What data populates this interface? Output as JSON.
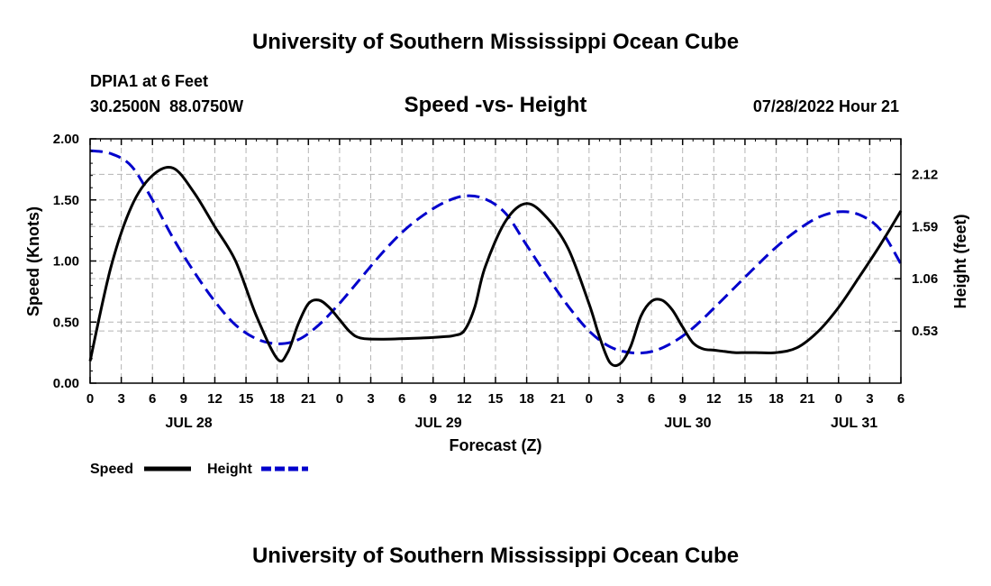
{
  "header": {
    "title": "University of Southern Mississippi Ocean Cube",
    "station": "DPIA1 at 6 Feet",
    "coords": "30.2500N  88.0750W",
    "subtitle": "Speed -vs- Height",
    "datetime": "07/28/2022 Hour 21"
  },
  "footer": {
    "title": "University of Southern Mississippi Ocean Cube"
  },
  "chart_data": {
    "type": "line",
    "title": "Speed -vs- Height",
    "xlabel": "Forecast (Z)",
    "ylabel_left": "Speed (Knots)",
    "ylabel_right": "Height (feet)",
    "x_hours_range": [
      0,
      78
    ],
    "ylim_left": [
      0,
      2.0
    ],
    "ylim_right": [
      0,
      2.48
    ],
    "y_ticks_left": [
      "0.00",
      "0.50",
      "1.00",
      "1.50",
      "2.00"
    ],
    "y_tick_values_left": [
      0,
      0.5,
      1.0,
      1.5,
      2.0
    ],
    "y_ticks_right": [
      "0.53",
      "1.06",
      "1.59",
      "2.12"
    ],
    "y_tick_values_right": [
      0.53,
      1.06,
      1.59,
      2.12
    ],
    "x_ticks": [
      "0",
      "3",
      "6",
      "9",
      "12",
      "15",
      "18",
      "21",
      "0",
      "3",
      "6",
      "9",
      "12",
      "15",
      "18",
      "21",
      "0",
      "3",
      "6",
      "9",
      "12",
      "15",
      "18",
      "21",
      "0",
      "3",
      "6"
    ],
    "x_tick_hours": [
      0,
      3,
      6,
      9,
      12,
      15,
      18,
      21,
      24,
      27,
      30,
      33,
      36,
      39,
      42,
      45,
      48,
      51,
      54,
      57,
      60,
      63,
      66,
      69,
      72,
      75,
      78
    ],
    "date_labels": [
      "JUL 28",
      "JUL 29",
      "JUL 30",
      "JUL 31"
    ],
    "date_label_hours": [
      9.5,
      33.5,
      57.5,
      73.5
    ],
    "grid": true,
    "legend_position": "bottom-left",
    "series": [
      {
        "name": "Speed",
        "axis": "left",
        "color": "#000000",
        "style": "solid",
        "x": [
          0,
          2,
          4,
          6,
          8,
          10,
          12,
          14,
          16,
          18,
          19,
          20,
          21,
          22,
          23,
          24,
          25,
          26,
          28,
          32,
          34,
          35,
          36,
          37,
          38,
          40,
          42,
          44,
          46,
          48,
          49,
          50,
          51,
          52,
          53,
          54,
          55,
          56,
          57,
          58,
          59,
          60,
          61,
          62,
          63,
          64,
          66,
          68,
          70,
          72,
          74,
          76,
          78
        ],
        "values": [
          0.18,
          0.95,
          1.45,
          1.7,
          1.76,
          1.56,
          1.28,
          1.0,
          0.55,
          0.2,
          0.25,
          0.48,
          0.65,
          0.68,
          0.62,
          0.52,
          0.42,
          0.37,
          0.36,
          0.37,
          0.38,
          0.39,
          0.43,
          0.62,
          0.95,
          1.33,
          1.47,
          1.35,
          1.1,
          0.65,
          0.38,
          0.17,
          0.16,
          0.3,
          0.55,
          0.67,
          0.68,
          0.6,
          0.46,
          0.33,
          0.28,
          0.27,
          0.26,
          0.25,
          0.25,
          0.25,
          0.25,
          0.29,
          0.42,
          0.62,
          0.87,
          1.13,
          1.41
        ]
      },
      {
        "name": "Height",
        "axis": "right",
        "color": "#0000cc",
        "style": "dashed",
        "x": [
          0,
          2,
          4,
          6,
          8,
          10,
          12,
          14,
          16,
          18,
          20,
          22,
          24,
          26,
          28,
          30,
          32,
          34,
          36,
          38,
          40,
          42,
          44,
          46,
          48,
          50,
          52,
          54,
          56,
          58,
          60,
          62,
          64,
          66,
          68,
          70,
          72,
          74,
          76,
          78
        ],
        "values": [
          2.36,
          2.33,
          2.2,
          1.86,
          1.47,
          1.13,
          0.83,
          0.59,
          0.45,
          0.4,
          0.44,
          0.59,
          0.81,
          1.06,
          1.31,
          1.53,
          1.7,
          1.83,
          1.9,
          1.87,
          1.72,
          1.4,
          1.08,
          0.78,
          0.53,
          0.37,
          0.31,
          0.32,
          0.41,
          0.56,
          0.76,
          0.97,
          1.18,
          1.38,
          1.55,
          1.68,
          1.74,
          1.71,
          1.56,
          1.21
        ]
      }
    ]
  }
}
